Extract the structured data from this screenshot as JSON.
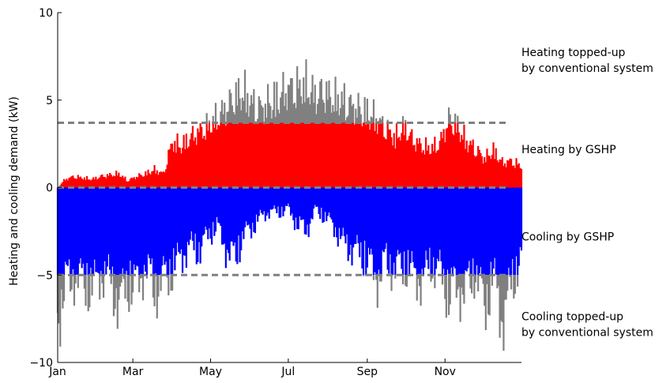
{
  "chart_data": {
    "type": "area",
    "xlabel": "",
    "ylabel": "Heating and cooling demand (kW)",
    "xlim": [
      1,
      365
    ],
    "ylim": [
      -10,
      10
    ],
    "x_ticks": [
      {
        "day": 1,
        "label": "Jan"
      },
      {
        "day": 60,
        "label": "Mar"
      },
      {
        "day": 121,
        "label": "May"
      },
      {
        "day": 182,
        "label": "Jul"
      },
      {
        "day": 244,
        "label": "Sep"
      },
      {
        "day": 305,
        "label": "Nov"
      }
    ],
    "y_ticks": [
      {
        "value": 10,
        "label": "10"
      },
      {
        "value": 5,
        "label": "5"
      },
      {
        "value": 0,
        "label": "0"
      },
      {
        "value": -5,
        "label": "−5"
      },
      {
        "value": -10,
        "label": "−10"
      }
    ],
    "thresholds": {
      "heating_cap": 3.7,
      "zero": 0,
      "cooling_cap": -5.0
    },
    "colors": {
      "gshp_heating": "#ff0000",
      "gshp_cooling": "#0000ff",
      "topped_up": "#808080",
      "threshold_line": "#808080"
    },
    "annotations": [
      {
        "id": "heat-topup",
        "lines": [
          "Heating topped-up",
          "by conventional system"
        ],
        "value": 7.3
      },
      {
        "id": "heat-gshp",
        "lines": [
          "Heating by GSHP"
        ],
        "value": 2.2
      },
      {
        "id": "cool-gshp",
        "lines": [
          "Cooling by GSHP"
        ],
        "value": -2.8
      },
      {
        "id": "cool-topup",
        "lines": [
          "Cooling topped-up",
          "by conventional system"
        ],
        "value": -7.8
      }
    ],
    "series": [
      {
        "name": "Heating demand",
        "x": [
          1,
          7,
          14,
          21,
          28,
          35,
          42,
          49,
          56,
          63,
          70,
          77,
          84,
          91,
          98,
          105,
          112,
          119,
          126,
          133,
          140,
          147,
          154,
          161,
          168,
          175,
          182,
          189,
          196,
          203,
          210,
          217,
          224,
          231,
          238,
          245,
          252,
          259,
          266,
          273,
          280,
          287,
          294,
          301,
          308,
          315,
          322,
          329,
          336,
          343,
          350,
          357,
          364
        ],
        "values": [
          0.0,
          0.6,
          0.8,
          0.7,
          0.6,
          0.8,
          0.9,
          1.0,
          0.5,
          0.8,
          1.0,
          1.3,
          1.0,
          3.3,
          3.0,
          3.6,
          4.0,
          4.4,
          5.0,
          5.7,
          6.5,
          6.9,
          6.0,
          5.7,
          6.2,
          6.6,
          7.1,
          7.2,
          7.4,
          6.6,
          6.9,
          6.4,
          6.3,
          5.9,
          5.6,
          5.4,
          4.9,
          4.2,
          3.6,
          4.4,
          3.4,
          3.0,
          2.8,
          3.2,
          4.9,
          4.4,
          3.3,
          2.8,
          2.1,
          2.7,
          1.8,
          1.9,
          1.6
        ]
      },
      {
        "name": "Cooling demand",
        "x": [
          1,
          7,
          14,
          21,
          28,
          35,
          42,
          49,
          56,
          63,
          70,
          77,
          84,
          91,
          98,
          105,
          112,
          119,
          126,
          133,
          140,
          147,
          154,
          161,
          168,
          175,
          182,
          189,
          196,
          203,
          210,
          217,
          224,
          231,
          238,
          245,
          252,
          259,
          266,
          273,
          280,
          287,
          294,
          301,
          308,
          315,
          322,
          329,
          336,
          343,
          350,
          357,
          364
        ],
        "values": [
          -10.0,
          -7.5,
          -6.8,
          -7.2,
          -7.8,
          -6.5,
          -7.0,
          -8.8,
          -7.4,
          -7.6,
          -6.0,
          -7.9,
          -6.9,
          -6.4,
          -5.2,
          -4.5,
          -4.8,
          -3.6,
          -3.0,
          -4.6,
          -5.5,
          -3.6,
          -3.0,
          -2.2,
          -1.8,
          -1.9,
          -1.6,
          -2.8,
          -3.3,
          -1.7,
          -2.2,
          -2.8,
          -4.1,
          -4.6,
          -5.0,
          -5.8,
          -6.9,
          -5.7,
          -6.2,
          -6.0,
          -6.6,
          -7.1,
          -5.8,
          -6.4,
          -8.2,
          -7.6,
          -7.9,
          -6.3,
          -9.1,
          -6.8,
          -10.0,
          -7.6,
          -5.4
        ]
      }
    ]
  }
}
